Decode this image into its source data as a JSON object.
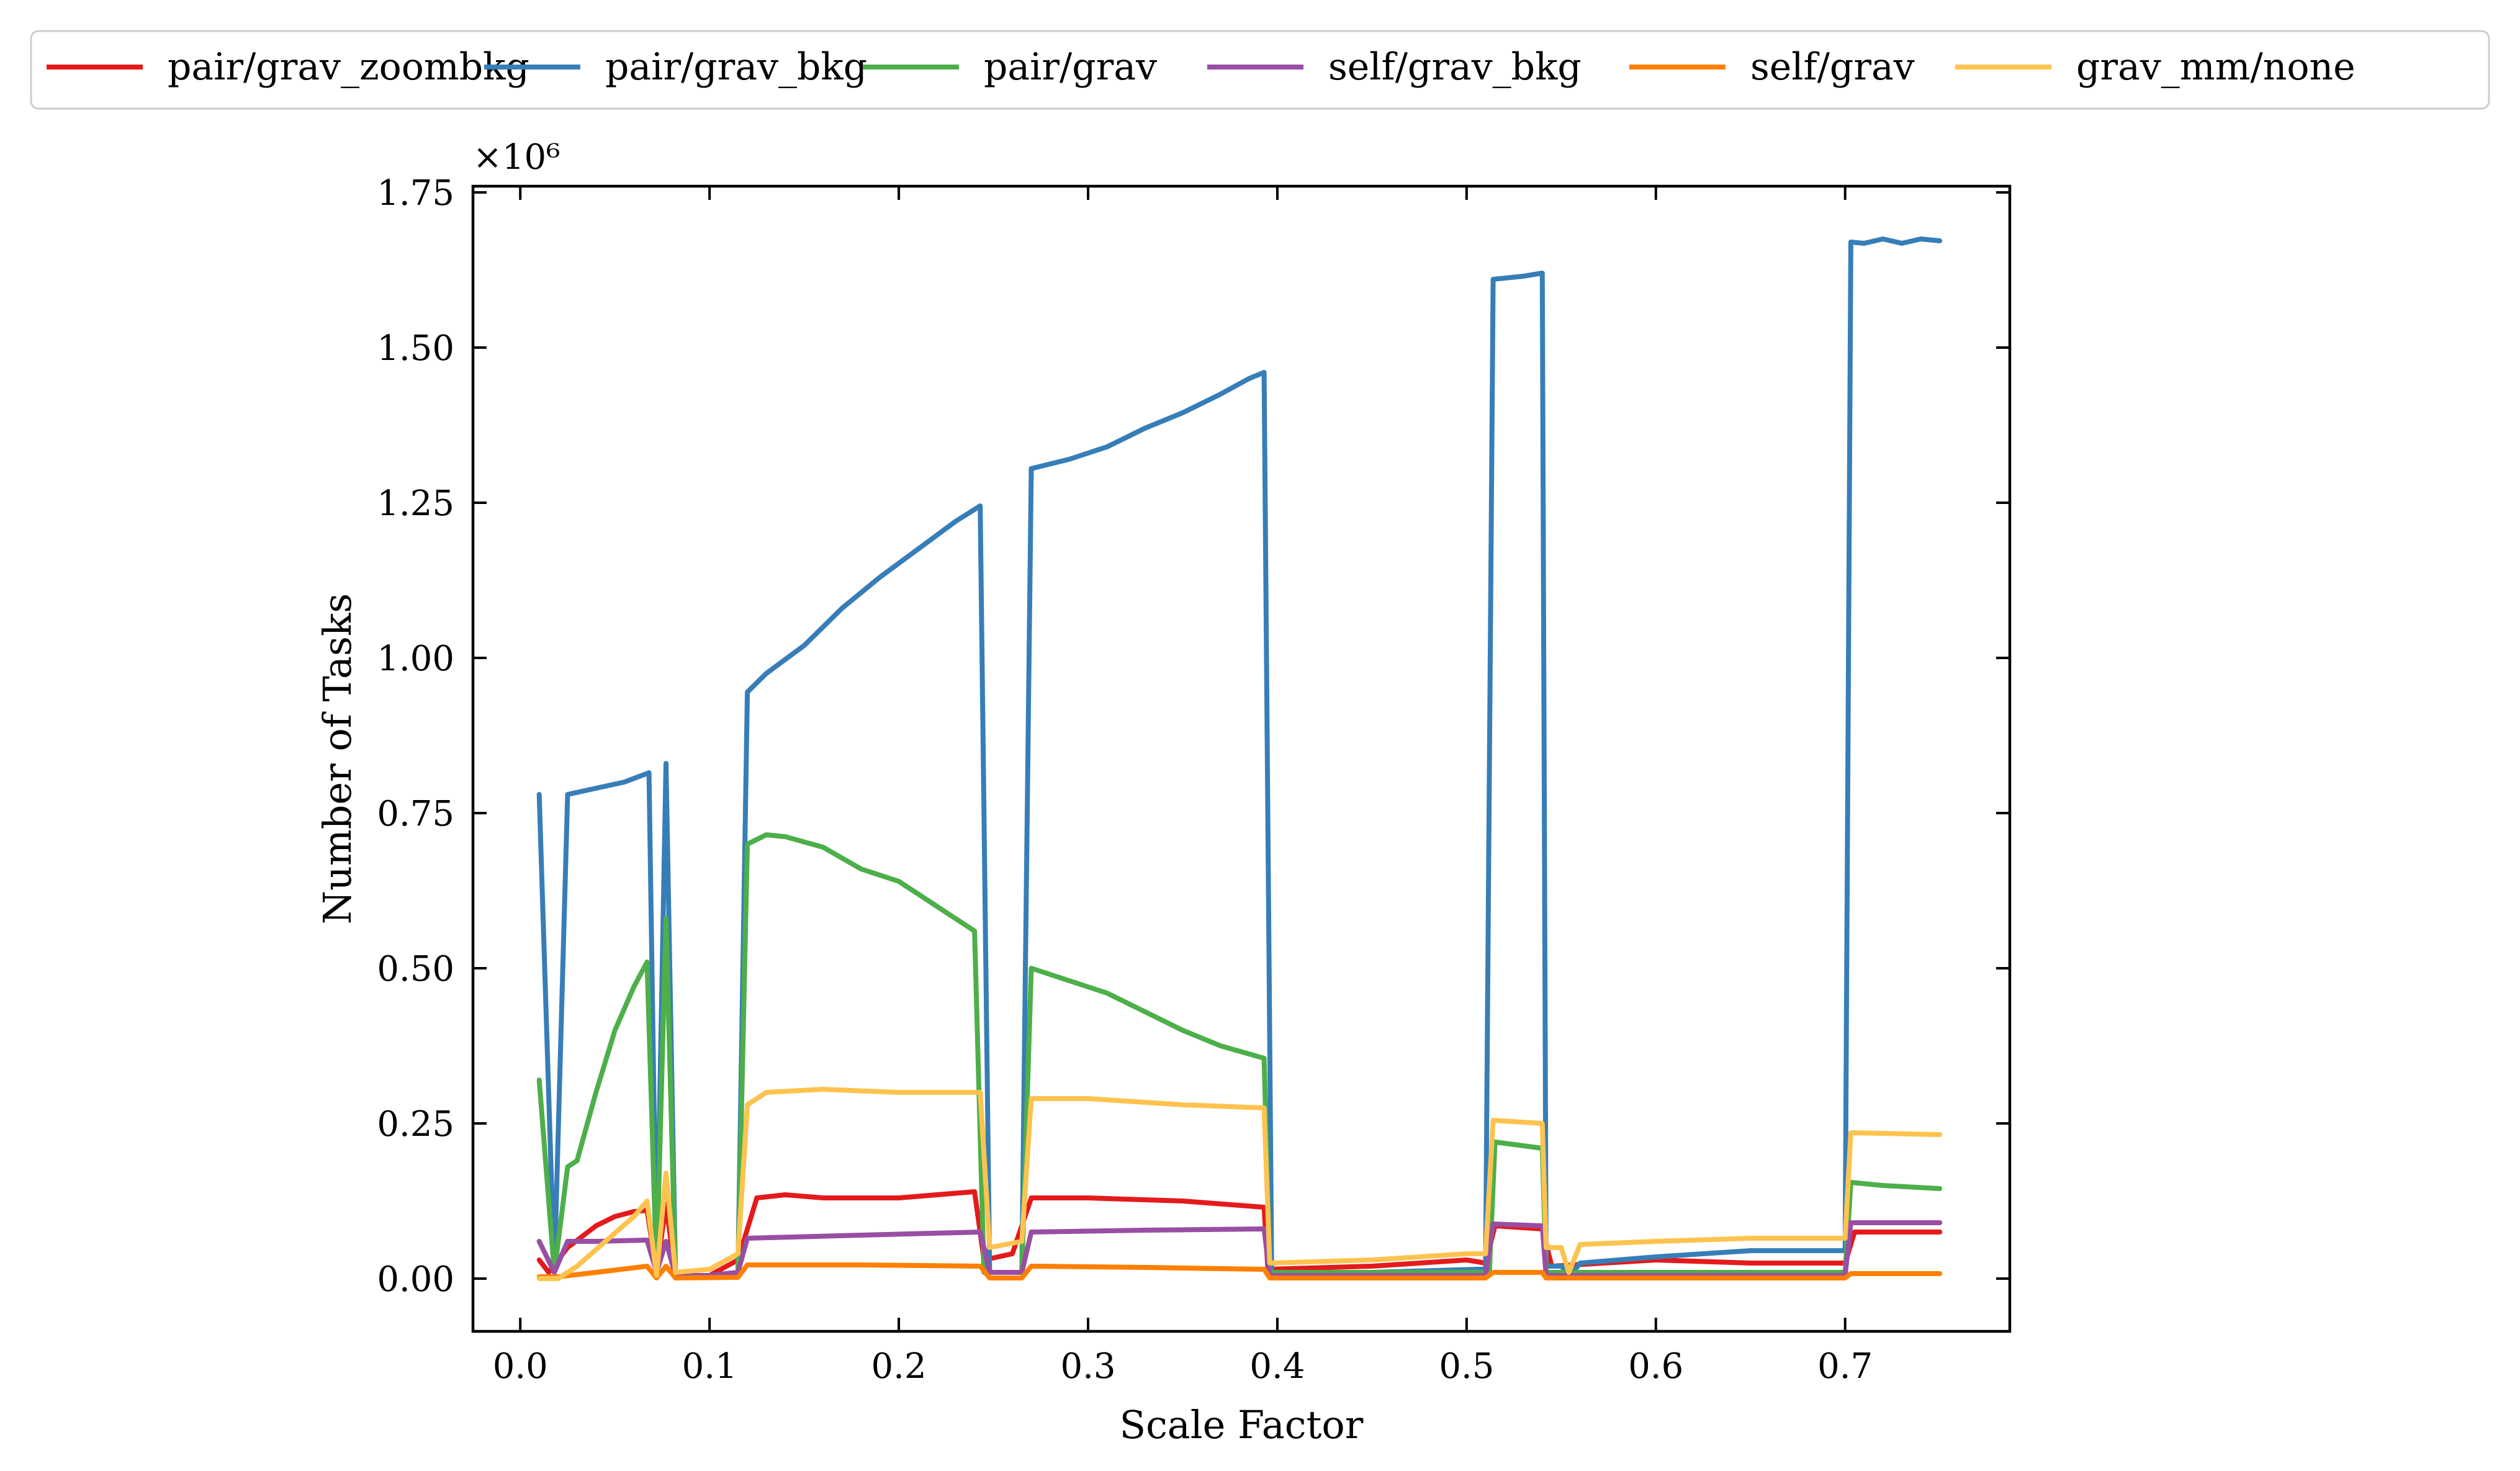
{
  "chart_data": {
    "type": "line",
    "xlabel": "Scale Factor",
    "ylabel": "Number of Tasks",
    "y_multiplier_label": "×10⁶",
    "y_multiplier": 1000000,
    "xlim": [
      -0.025,
      0.787
    ],
    "ylim": [
      -0.085,
      1.76
    ],
    "xticks": [
      0.0,
      0.1,
      0.2,
      0.3,
      0.4,
      0.5,
      0.6,
      0.7
    ],
    "xtick_labels": [
      "0.0",
      "0.1",
      "0.2",
      "0.3",
      "0.4",
      "0.5",
      "0.6",
      "0.7"
    ],
    "yticks": [
      0.0,
      0.25,
      0.5,
      0.75,
      1.0,
      1.25,
      1.5,
      1.75
    ],
    "ytick_labels": [
      "0.00",
      "0.25",
      "0.50",
      "0.75",
      "1.00",
      "1.25",
      "1.50",
      "1.75"
    ],
    "grid": false,
    "legend_placement": "top, outside, single row",
    "series": [
      {
        "name": "pair/grav_zoombkg",
        "color": "#e41a1c",
        "points": [
          [
            0.01,
            0.03
          ],
          [
            0.015,
            0.01
          ],
          [
            0.025,
            0.05
          ],
          [
            0.04,
            0.085
          ],
          [
            0.05,
            0.1
          ],
          [
            0.06,
            0.108
          ],
          [
            0.067,
            0.11
          ],
          [
            0.072,
            0.01
          ],
          [
            0.077,
            0.12
          ],
          [
            0.082,
            0.005
          ],
          [
            0.1,
            0.005
          ],
          [
            0.115,
            0.03
          ],
          [
            0.125,
            0.13
          ],
          [
            0.14,
            0.135
          ],
          [
            0.16,
            0.13
          ],
          [
            0.2,
            0.13
          ],
          [
            0.24,
            0.14
          ],
          [
            0.245,
            0.03
          ],
          [
            0.26,
            0.04
          ],
          [
            0.27,
            0.13
          ],
          [
            0.3,
            0.13
          ],
          [
            0.35,
            0.125
          ],
          [
            0.393,
            0.115
          ],
          [
            0.395,
            0.015
          ],
          [
            0.45,
            0.02
          ],
          [
            0.5,
            0.03
          ],
          [
            0.51,
            0.025
          ],
          [
            0.515,
            0.085
          ],
          [
            0.54,
            0.08
          ],
          [
            0.545,
            0.02
          ],
          [
            0.6,
            0.03
          ],
          [
            0.65,
            0.025
          ],
          [
            0.7,
            0.025
          ],
          [
            0.705,
            0.075
          ],
          [
            0.75,
            0.075
          ]
        ]
      },
      {
        "name": "pair/grav_bkg",
        "color": "#377eb8",
        "points": [
          [
            0.01,
            0.78
          ],
          [
            0.018,
            0.01
          ],
          [
            0.025,
            0.78
          ],
          [
            0.04,
            0.79
          ],
          [
            0.055,
            0.8
          ],
          [
            0.068,
            0.815
          ],
          [
            0.072,
            0.01
          ],
          [
            0.077,
            0.83
          ],
          [
            0.082,
            0.005
          ],
          [
            0.1,
            0.005
          ],
          [
            0.115,
            0.01
          ],
          [
            0.12,
            0.945
          ],
          [
            0.13,
            0.975
          ],
          [
            0.15,
            1.02
          ],
          [
            0.17,
            1.08
          ],
          [
            0.19,
            1.13
          ],
          [
            0.21,
            1.175
          ],
          [
            0.23,
            1.22
          ],
          [
            0.243,
            1.245
          ],
          [
            0.248,
            0.01
          ],
          [
            0.265,
            0.01
          ],
          [
            0.27,
            1.305
          ],
          [
            0.29,
            1.32
          ],
          [
            0.31,
            1.34
          ],
          [
            0.33,
            1.37
          ],
          [
            0.35,
            1.395
          ],
          [
            0.37,
            1.425
          ],
          [
            0.385,
            1.45
          ],
          [
            0.393,
            1.46
          ],
          [
            0.397,
            0.01
          ],
          [
            0.45,
            0.01
          ],
          [
            0.505,
            0.015
          ],
          [
            0.51,
            0.015
          ],
          [
            0.514,
            1.61
          ],
          [
            0.53,
            1.615
          ],
          [
            0.54,
            1.62
          ],
          [
            0.542,
            0.02
          ],
          [
            0.55,
            0.02
          ],
          [
            0.555,
            0.005
          ],
          [
            0.56,
            0.025
          ],
          [
            0.6,
            0.035
          ],
          [
            0.65,
            0.045
          ],
          [
            0.7,
            0.045
          ],
          [
            0.703,
            1.67
          ],
          [
            0.71,
            1.668
          ],
          [
            0.72,
            1.675
          ],
          [
            0.73,
            1.668
          ],
          [
            0.74,
            1.675
          ],
          [
            0.75,
            1.672
          ]
        ]
      },
      {
        "name": "pair/grav",
        "color": "#4daf4a",
        "points": [
          [
            0.01,
            0.32
          ],
          [
            0.018,
            0.01
          ],
          [
            0.025,
            0.18
          ],
          [
            0.03,
            0.19
          ],
          [
            0.04,
            0.3
          ],
          [
            0.05,
            0.4
          ],
          [
            0.06,
            0.47
          ],
          [
            0.067,
            0.51
          ],
          [
            0.072,
            0.01
          ],
          [
            0.077,
            0.58
          ],
          [
            0.082,
            0.005
          ],
          [
            0.1,
            0.005
          ],
          [
            0.115,
            0.01
          ],
          [
            0.12,
            0.7
          ],
          [
            0.13,
            0.715
          ],
          [
            0.14,
            0.712
          ],
          [
            0.16,
            0.695
          ],
          [
            0.18,
            0.66
          ],
          [
            0.2,
            0.64
          ],
          [
            0.22,
            0.6
          ],
          [
            0.24,
            0.56
          ],
          [
            0.245,
            0.01
          ],
          [
            0.265,
            0.01
          ],
          [
            0.27,
            0.5
          ],
          [
            0.29,
            0.48
          ],
          [
            0.31,
            0.46
          ],
          [
            0.33,
            0.43
          ],
          [
            0.35,
            0.4
          ],
          [
            0.37,
            0.375
          ],
          [
            0.393,
            0.355
          ],
          [
            0.396,
            0.01
          ],
          [
            0.45,
            0.01
          ],
          [
            0.505,
            0.01
          ],
          [
            0.512,
            0.01
          ],
          [
            0.515,
            0.22
          ],
          [
            0.54,
            0.21
          ],
          [
            0.542,
            0.01
          ],
          [
            0.6,
            0.01
          ],
          [
            0.7,
            0.01
          ],
          [
            0.703,
            0.155
          ],
          [
            0.72,
            0.15
          ],
          [
            0.75,
            0.145
          ]
        ]
      },
      {
        "name": "self/grav_bkg",
        "color": "#984ea3",
        "points": [
          [
            0.01,
            0.06
          ],
          [
            0.018,
            0.01
          ],
          [
            0.025,
            0.06
          ],
          [
            0.04,
            0.06
          ],
          [
            0.067,
            0.062
          ],
          [
            0.072,
            0.01
          ],
          [
            0.077,
            0.06
          ],
          [
            0.082,
            0.005
          ],
          [
            0.1,
            0.005
          ],
          [
            0.115,
            0.01
          ],
          [
            0.12,
            0.065
          ],
          [
            0.18,
            0.07
          ],
          [
            0.243,
            0.075
          ],
          [
            0.248,
            0.01
          ],
          [
            0.265,
            0.01
          ],
          [
            0.27,
            0.075
          ],
          [
            0.33,
            0.078
          ],
          [
            0.393,
            0.08
          ],
          [
            0.396,
            0.005
          ],
          [
            0.51,
            0.005
          ],
          [
            0.514,
            0.088
          ],
          [
            0.54,
            0.085
          ],
          [
            0.542,
            0.005
          ],
          [
            0.7,
            0.005
          ],
          [
            0.703,
            0.09
          ],
          [
            0.75,
            0.09
          ]
        ]
      },
      {
        "name": "self/grav",
        "color": "#ff7f00",
        "points": [
          [
            0.01,
            0.003
          ],
          [
            0.02,
            0.003
          ],
          [
            0.04,
            0.01
          ],
          [
            0.067,
            0.02
          ],
          [
            0.072,
            0.001
          ],
          [
            0.077,
            0.02
          ],
          [
            0.082,
            0.001
          ],
          [
            0.115,
            0.002
          ],
          [
            0.12,
            0.022
          ],
          [
            0.18,
            0.022
          ],
          [
            0.243,
            0.02
          ],
          [
            0.248,
            0.001
          ],
          [
            0.265,
            0.001
          ],
          [
            0.27,
            0.02
          ],
          [
            0.33,
            0.018
          ],
          [
            0.393,
            0.015
          ],
          [
            0.396,
            0.001
          ],
          [
            0.51,
            0.001
          ],
          [
            0.514,
            0.01
          ],
          [
            0.54,
            0.01
          ],
          [
            0.542,
            0.001
          ],
          [
            0.7,
            0.001
          ],
          [
            0.703,
            0.008
          ],
          [
            0.75,
            0.008
          ]
        ]
      },
      {
        "name": "grav_mm/none",
        "color": "#fdc34f",
        "points": [
          [
            0.01,
            0.0
          ],
          [
            0.02,
            0.0
          ],
          [
            0.03,
            0.02
          ],
          [
            0.045,
            0.06
          ],
          [
            0.06,
            0.1
          ],
          [
            0.067,
            0.125
          ],
          [
            0.072,
            0.005
          ],
          [
            0.077,
            0.17
          ],
          [
            0.082,
            0.01
          ],
          [
            0.1,
            0.015
          ],
          [
            0.115,
            0.04
          ],
          [
            0.12,
            0.28
          ],
          [
            0.13,
            0.3
          ],
          [
            0.16,
            0.305
          ],
          [
            0.2,
            0.3
          ],
          [
            0.243,
            0.3
          ],
          [
            0.248,
            0.05
          ],
          [
            0.265,
            0.06
          ],
          [
            0.27,
            0.29
          ],
          [
            0.3,
            0.29
          ],
          [
            0.35,
            0.28
          ],
          [
            0.393,
            0.275
          ],
          [
            0.396,
            0.025
          ],
          [
            0.45,
            0.03
          ],
          [
            0.5,
            0.04
          ],
          [
            0.51,
            0.04
          ],
          [
            0.514,
            0.255
          ],
          [
            0.54,
            0.25
          ],
          [
            0.542,
            0.05
          ],
          [
            0.55,
            0.05
          ],
          [
            0.554,
            0.01
          ],
          [
            0.56,
            0.055
          ],
          [
            0.6,
            0.06
          ],
          [
            0.65,
            0.065
          ],
          [
            0.7,
            0.065
          ],
          [
            0.703,
            0.235
          ],
          [
            0.75,
            0.232
          ]
        ]
      }
    ]
  }
}
